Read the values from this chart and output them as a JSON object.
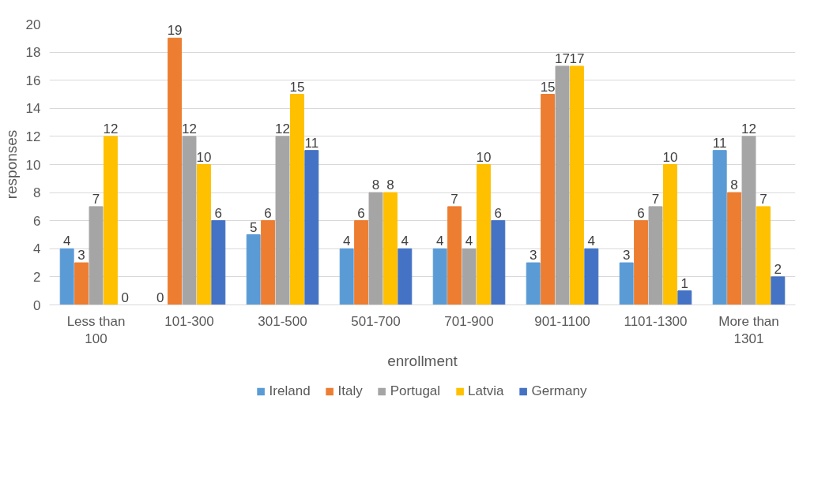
{
  "chart_data": {
    "type": "bar",
    "xlabel": "enrollment",
    "ylabel": "responses",
    "categories": [
      "Less than 100",
      "101-300",
      "301-500",
      "501-700",
      "701-900",
      "901-1100",
      "1101-1300",
      "More than 1301"
    ],
    "series": [
      {
        "name": "Ireland",
        "color": "#5b9bd5",
        "values": [
          4,
          0,
          5,
          4,
          4,
          3,
          3,
          11
        ]
      },
      {
        "name": "Italy",
        "color": "#ed7d31",
        "values": [
          3,
          19,
          6,
          6,
          7,
          15,
          6,
          8
        ]
      },
      {
        "name": "Portugal",
        "color": "#a5a5a5",
        "values": [
          7,
          12,
          12,
          8,
          4,
          17,
          7,
          12
        ]
      },
      {
        "name": "Latvia",
        "color": "#ffc000",
        "values": [
          12,
          10,
          15,
          8,
          10,
          17,
          10,
          7
        ]
      },
      {
        "name": "Germany",
        "color": "#4472c4",
        "values": [
          0,
          6,
          11,
          4,
          6,
          4,
          1,
          2
        ]
      }
    ],
    "ylim": [
      0,
      20
    ],
    "yticks": [
      0,
      2,
      4,
      6,
      8,
      10,
      12,
      14,
      16,
      18,
      20
    ],
    "grid": "y",
    "legend": "bottom",
    "data_labels": true
  }
}
